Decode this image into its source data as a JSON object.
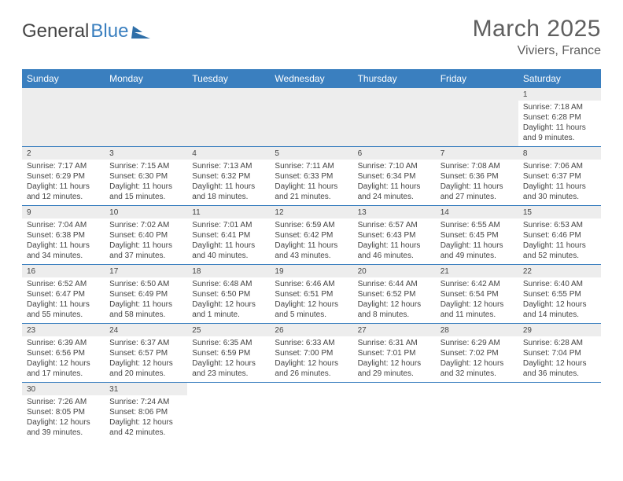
{
  "brand": {
    "part1": "General",
    "part2": "Blue"
  },
  "title": "March 2025",
  "location": "Viviers, France",
  "days": [
    "Sunday",
    "Monday",
    "Tuesday",
    "Wednesday",
    "Thursday",
    "Friday",
    "Saturday"
  ],
  "colors": {
    "header_bg": "#3a7fbf",
    "header_text": "#ffffff",
    "daynum_bg": "#ededed",
    "border": "#3a7fbf",
    "text": "#444444",
    "title_text": "#5f5f5f"
  },
  "weeks": [
    [
      null,
      null,
      null,
      null,
      null,
      null,
      {
        "n": "1",
        "sr": "Sunrise: 7:18 AM",
        "ss": "Sunset: 6:28 PM",
        "dl": "Daylight: 11 hours and 9 minutes."
      }
    ],
    [
      {
        "n": "2",
        "sr": "Sunrise: 7:17 AM",
        "ss": "Sunset: 6:29 PM",
        "dl": "Daylight: 11 hours and 12 minutes."
      },
      {
        "n": "3",
        "sr": "Sunrise: 7:15 AM",
        "ss": "Sunset: 6:30 PM",
        "dl": "Daylight: 11 hours and 15 minutes."
      },
      {
        "n": "4",
        "sr": "Sunrise: 7:13 AM",
        "ss": "Sunset: 6:32 PM",
        "dl": "Daylight: 11 hours and 18 minutes."
      },
      {
        "n": "5",
        "sr": "Sunrise: 7:11 AM",
        "ss": "Sunset: 6:33 PM",
        "dl": "Daylight: 11 hours and 21 minutes."
      },
      {
        "n": "6",
        "sr": "Sunrise: 7:10 AM",
        "ss": "Sunset: 6:34 PM",
        "dl": "Daylight: 11 hours and 24 minutes."
      },
      {
        "n": "7",
        "sr": "Sunrise: 7:08 AM",
        "ss": "Sunset: 6:36 PM",
        "dl": "Daylight: 11 hours and 27 minutes."
      },
      {
        "n": "8",
        "sr": "Sunrise: 7:06 AM",
        "ss": "Sunset: 6:37 PM",
        "dl": "Daylight: 11 hours and 30 minutes."
      }
    ],
    [
      {
        "n": "9",
        "sr": "Sunrise: 7:04 AM",
        "ss": "Sunset: 6:38 PM",
        "dl": "Daylight: 11 hours and 34 minutes."
      },
      {
        "n": "10",
        "sr": "Sunrise: 7:02 AM",
        "ss": "Sunset: 6:40 PM",
        "dl": "Daylight: 11 hours and 37 minutes."
      },
      {
        "n": "11",
        "sr": "Sunrise: 7:01 AM",
        "ss": "Sunset: 6:41 PM",
        "dl": "Daylight: 11 hours and 40 minutes."
      },
      {
        "n": "12",
        "sr": "Sunrise: 6:59 AM",
        "ss": "Sunset: 6:42 PM",
        "dl": "Daylight: 11 hours and 43 minutes."
      },
      {
        "n": "13",
        "sr": "Sunrise: 6:57 AM",
        "ss": "Sunset: 6:43 PM",
        "dl": "Daylight: 11 hours and 46 minutes."
      },
      {
        "n": "14",
        "sr": "Sunrise: 6:55 AM",
        "ss": "Sunset: 6:45 PM",
        "dl": "Daylight: 11 hours and 49 minutes."
      },
      {
        "n": "15",
        "sr": "Sunrise: 6:53 AM",
        "ss": "Sunset: 6:46 PM",
        "dl": "Daylight: 11 hours and 52 minutes."
      }
    ],
    [
      {
        "n": "16",
        "sr": "Sunrise: 6:52 AM",
        "ss": "Sunset: 6:47 PM",
        "dl": "Daylight: 11 hours and 55 minutes."
      },
      {
        "n": "17",
        "sr": "Sunrise: 6:50 AM",
        "ss": "Sunset: 6:49 PM",
        "dl": "Daylight: 11 hours and 58 minutes."
      },
      {
        "n": "18",
        "sr": "Sunrise: 6:48 AM",
        "ss": "Sunset: 6:50 PM",
        "dl": "Daylight: 12 hours and 1 minute."
      },
      {
        "n": "19",
        "sr": "Sunrise: 6:46 AM",
        "ss": "Sunset: 6:51 PM",
        "dl": "Daylight: 12 hours and 5 minutes."
      },
      {
        "n": "20",
        "sr": "Sunrise: 6:44 AM",
        "ss": "Sunset: 6:52 PM",
        "dl": "Daylight: 12 hours and 8 minutes."
      },
      {
        "n": "21",
        "sr": "Sunrise: 6:42 AM",
        "ss": "Sunset: 6:54 PM",
        "dl": "Daylight: 12 hours and 11 minutes."
      },
      {
        "n": "22",
        "sr": "Sunrise: 6:40 AM",
        "ss": "Sunset: 6:55 PM",
        "dl": "Daylight: 12 hours and 14 minutes."
      }
    ],
    [
      {
        "n": "23",
        "sr": "Sunrise: 6:39 AM",
        "ss": "Sunset: 6:56 PM",
        "dl": "Daylight: 12 hours and 17 minutes."
      },
      {
        "n": "24",
        "sr": "Sunrise: 6:37 AM",
        "ss": "Sunset: 6:57 PM",
        "dl": "Daylight: 12 hours and 20 minutes."
      },
      {
        "n": "25",
        "sr": "Sunrise: 6:35 AM",
        "ss": "Sunset: 6:59 PM",
        "dl": "Daylight: 12 hours and 23 minutes."
      },
      {
        "n": "26",
        "sr": "Sunrise: 6:33 AM",
        "ss": "Sunset: 7:00 PM",
        "dl": "Daylight: 12 hours and 26 minutes."
      },
      {
        "n": "27",
        "sr": "Sunrise: 6:31 AM",
        "ss": "Sunset: 7:01 PM",
        "dl": "Daylight: 12 hours and 29 minutes."
      },
      {
        "n": "28",
        "sr": "Sunrise: 6:29 AM",
        "ss": "Sunset: 7:02 PM",
        "dl": "Daylight: 12 hours and 32 minutes."
      },
      {
        "n": "29",
        "sr": "Sunrise: 6:28 AM",
        "ss": "Sunset: 7:04 PM",
        "dl": "Daylight: 12 hours and 36 minutes."
      }
    ],
    [
      {
        "n": "30",
        "sr": "Sunrise: 7:26 AM",
        "ss": "Sunset: 8:05 PM",
        "dl": "Daylight: 12 hours and 39 minutes."
      },
      {
        "n": "31",
        "sr": "Sunrise: 7:24 AM",
        "ss": "Sunset: 8:06 PM",
        "dl": "Daylight: 12 hours and 42 minutes."
      },
      null,
      null,
      null,
      null,
      null
    ]
  ]
}
